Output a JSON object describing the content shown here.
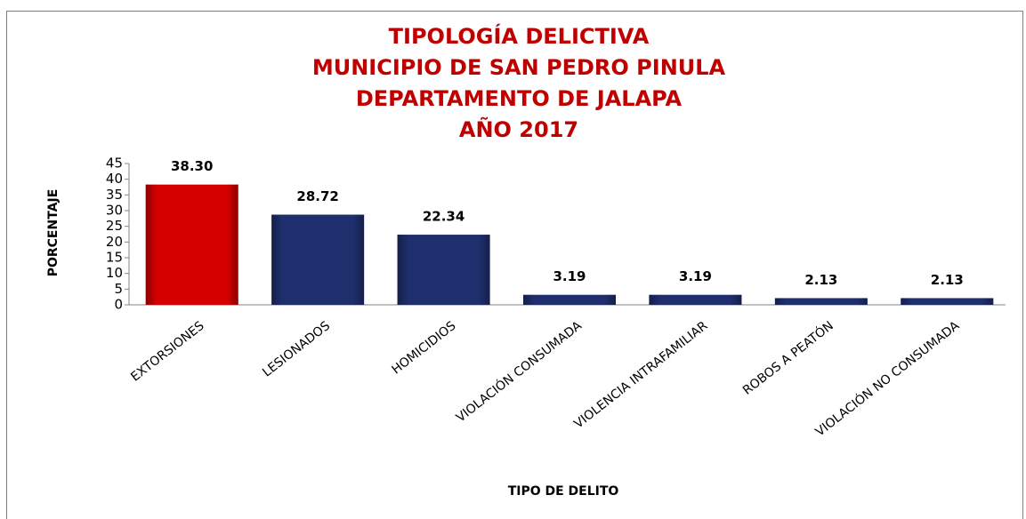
{
  "chart_data": {
    "type": "bar",
    "title": [
      "TIPOLOGÍA DELICTIVA",
      "MUNICIPIO DE SAN PEDRO PINULA",
      "DEPARTAMENTO DE JALAPA",
      "AÑO 2017"
    ],
    "y_label": "PORCENTAJE",
    "x_label": "TIPO DE DELITO",
    "categories": [
      "EXTORSIONES",
      "LESIONADOS",
      "HOMICIDIOS",
      "VIOLACIÓN CONSUMADA",
      "VIOLENCIA INTRAFAMILIAR",
      "ROBOS A PEATÓN",
      "VIOLACIÓN NO CONSUMADA"
    ],
    "values": [
      38.3,
      28.72,
      22.34,
      3.19,
      3.19,
      2.13,
      2.13
    ],
    "value_labels": [
      "38.30",
      "28.72",
      "22.34",
      "3.19",
      "3.19",
      "2.13",
      "2.13"
    ],
    "colors": [
      "#d40000",
      "#1f2f6e",
      "#1f2f6e",
      "#1f2f6e",
      "#1f2f6e",
      "#1f2f6e",
      "#1f2f6e"
    ],
    "ylim": [
      0,
      45
    ],
    "yticks": [
      0,
      5,
      10,
      15,
      20,
      25,
      30,
      35,
      40,
      45
    ],
    "grid": false
  }
}
